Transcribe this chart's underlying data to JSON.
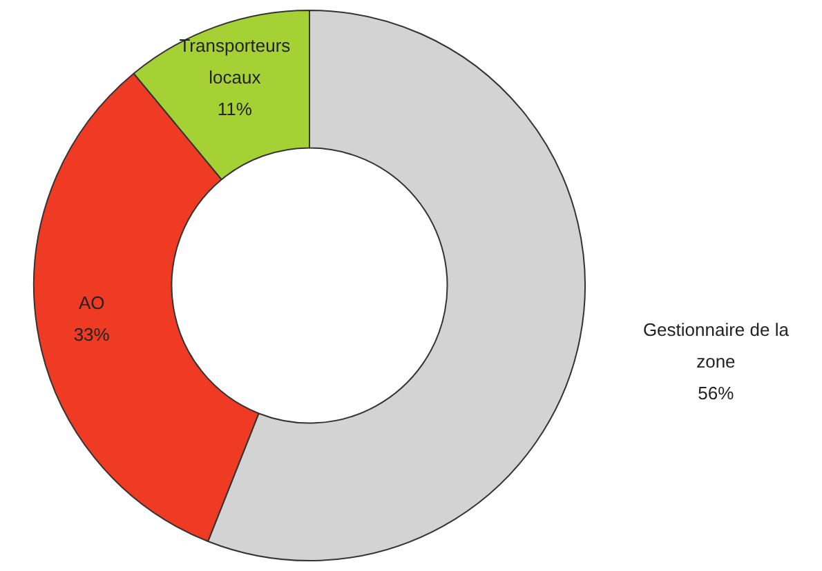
{
  "chart_data": {
    "type": "donut",
    "categories": [
      "Gestionnaire de la zone",
      "AO",
      "Transporteurs locaux"
    ],
    "values": [
      56,
      33,
      11
    ],
    "colors": [
      "#d3d3d3",
      "#ef3b24",
      "#a6d135"
    ],
    "value_labels": [
      "56%",
      "33%",
      "11%"
    ],
    "legend": false
  }
}
